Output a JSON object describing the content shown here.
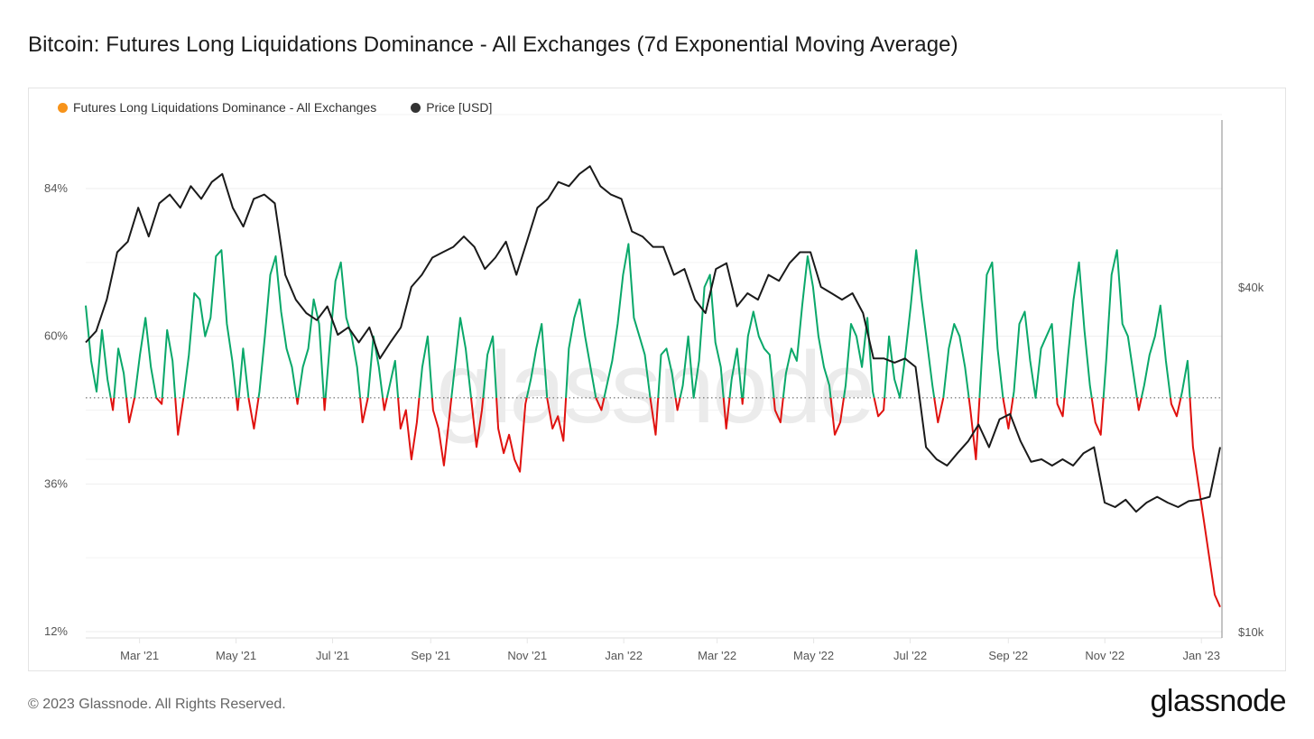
{
  "title": "Bitcoin: Futures Long Liquidations Dominance - All Exchanges (7d Exponential Moving Average)",
  "legend": [
    {
      "label": "Futures Long Liquidations Dominance - All Exchanges",
      "color": "#f7931a"
    },
    {
      "label": "Price [USD]",
      "color": "#333333"
    }
  ],
  "footer": {
    "copyright": "© 2023 Glassnode. All Rights Reserved.",
    "brand": "glassnode"
  },
  "watermark": "glassnode",
  "colors": {
    "above": "#0aa86a",
    "below": "#e0120f",
    "price": "#1a1a1a",
    "grid": "#eeeeee",
    "threshold": "#555555"
  },
  "chart_data": {
    "type": "line",
    "title": "Bitcoin: Futures Long Liquidations Dominance - All Exchanges (7d Exponential Moving Average)",
    "x_start_date": "2021-01-26",
    "x_end_date": "2023-01-14",
    "x_tick_labels": [
      "Mar '21",
      "May '21",
      "Jul '21",
      "Sep '21",
      "Nov '21",
      "Jan '22",
      "Mar '22",
      "May '22",
      "Jul '22",
      "Sep '22",
      "Nov '22",
      "Jan '23"
    ],
    "x_tick_dates": [
      "2021-03-01",
      "2021-05-01",
      "2021-07-01",
      "2021-09-01",
      "2021-11-01",
      "2022-01-01",
      "2022-03-01",
      "2022-05-01",
      "2022-07-01",
      "2022-09-01",
      "2022-11-01",
      "2023-01-01"
    ],
    "y_left": {
      "label": "Long Liquidations Dominance",
      "ticks": [
        12,
        36,
        60,
        84
      ],
      "tick_labels": [
        "12%",
        "36%",
        "60%",
        "84%"
      ],
      "range": [
        12,
        96
      ]
    },
    "y_right": {
      "label": "Price [USD]",
      "scale": "log",
      "ticks": [
        10000,
        40000
      ],
      "tick_labels": [
        "$10k",
        "$40k"
      ],
      "range": [
        10000,
        160000
      ]
    },
    "threshold": 50,
    "grid": true,
    "legend_position": "top-left",
    "series": [
      {
        "name": "Futures Long Liquidations Dominance - All Exchanges",
        "axis": "left",
        "day_step": 3.5,
        "values": [
          65,
          56,
          51,
          61,
          53,
          48,
          58,
          54,
          46,
          50,
          57,
          63,
          55,
          50,
          49,
          61,
          56,
          44,
          50,
          57,
          67,
          66,
          60,
          63,
          73,
          74,
          62,
          56,
          48,
          58,
          50,
          45,
          51,
          60,
          70,
          73,
          64,
          58,
          55,
          49,
          55,
          58,
          66,
          62,
          48,
          59,
          69,
          72,
          63,
          60,
          55,
          46,
          50,
          60,
          55,
          48,
          52,
          56,
          45,
          48,
          40,
          46,
          55,
          60,
          48,
          45,
          39,
          47,
          55,
          63,
          58,
          50,
          42,
          48,
          57,
          60,
          45,
          41,
          44,
          40,
          38,
          49,
          53,
          58,
          62,
          50,
          45,
          47,
          43,
          58,
          63,
          66,
          60,
          55,
          50,
          48,
          52,
          56,
          62,
          70,
          75,
          63,
          60,
          57,
          50,
          44,
          57,
          58,
          54,
          48,
          52,
          60,
          50,
          56,
          68,
          70,
          59,
          55,
          45,
          53,
          58,
          49,
          60,
          64,
          60,
          58,
          57,
          48,
          46,
          54,
          58,
          56,
          65,
          73,
          68,
          60,
          55,
          52,
          44,
          46,
          52,
          62,
          60,
          55,
          63,
          51,
          47,
          48,
          60,
          53,
          50,
          57,
          65,
          74,
          66,
          59,
          52,
          46,
          50,
          58,
          62,
          60,
          55,
          48,
          40,
          55,
          70,
          72,
          58,
          50,
          45,
          51,
          62,
          64,
          56,
          50,
          58,
          60,
          62,
          49,
          47,
          57,
          66,
          72,
          61,
          52,
          46,
          44,
          56,
          70,
          74,
          62,
          60,
          54,
          48,
          52,
          57,
          60,
          65,
          56,
          49,
          47,
          51,
          56,
          42,
          36,
          30,
          24,
          18,
          16
        ]
      },
      {
        "name": "Price [USD]",
        "axis": "right",
        "day_step": 7,
        "values": [
          32000,
          33500,
          38000,
          46000,
          48000,
          55000,
          49000,
          56000,
          58000,
          55000,
          60000,
          57000,
          61000,
          63000,
          55000,
          51000,
          57000,
          58000,
          56000,
          42000,
          38000,
          36000,
          35000,
          37000,
          33000,
          34000,
          32000,
          34000,
          30000,
          32000,
          34000,
          40000,
          42000,
          45000,
          46000,
          47000,
          49000,
          47000,
          43000,
          45000,
          48000,
          42000,
          48000,
          55000,
          57000,
          61000,
          60000,
          63000,
          65000,
          60000,
          58000,
          57000,
          50000,
          49000,
          47000,
          47000,
          42000,
          43000,
          38000,
          36000,
          43000,
          44000,
          37000,
          39000,
          38000,
          42000,
          41000,
          44000,
          46000,
          46000,
          40000,
          39000,
          38000,
          39000,
          36000,
          30000,
          30000,
          29500,
          30000,
          29000,
          21000,
          20000,
          19500,
          20500,
          21500,
          23000,
          21000,
          23500,
          24000,
          21500,
          19800,
          20000,
          19500,
          20000,
          19500,
          20500,
          21000,
          16800,
          16500,
          17000,
          16200,
          16800,
          17200,
          16800,
          16500,
          16900,
          17000,
          17200,
          21000
        ]
      }
    ]
  }
}
